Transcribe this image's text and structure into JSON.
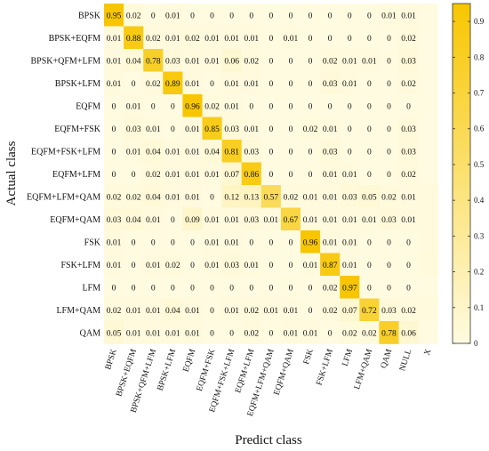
{
  "chart_data": {
    "type": "heatmap",
    "title": "",
    "xlabel": "Predict class",
    "ylabel": "Actual class",
    "rows": [
      "BPSK",
      "BPSK+EQFM",
      "BPSK+QFM+LFM",
      "BPSK+LFM",
      "EQFM",
      "EQFM+FSK",
      "EQFM+FSK+LFM",
      "EQFM+LFM",
      "EQFM+LFM+QAM",
      "EQFM+QAM",
      "FSK",
      "FSK+LFM",
      "LFM",
      "LFM+QAM",
      "QAM"
    ],
    "columns": [
      "BPSK",
      "BPSK+EQFM",
      "BPSK+QFM+LFM",
      "BPSK+LFM",
      "EQFM",
      "EQFM+FSK",
      "EQFM+FSK+LFM",
      "EQFM+LFM",
      "EQFM+LFM+QAM",
      "EQFM+QAM",
      "FSK",
      "FSK+LFM",
      "LFM",
      "LFM+QAM",
      "QAM",
      "NULL",
      "X"
    ],
    "values": [
      [
        0.95,
        0.02,
        0,
        0.01,
        0,
        0,
        0,
        0,
        0,
        0,
        0,
        0,
        0,
        0,
        0.01,
        0.01,
        0
      ],
      [
        0.01,
        0.88,
        0.02,
        0.01,
        0.02,
        0.01,
        0.01,
        0.01,
        0,
        0.01,
        0,
        0,
        0,
        0,
        0,
        0.02,
        0
      ],
      [
        0.01,
        0.04,
        0.78,
        0.03,
        0.01,
        0.01,
        0.06,
        0.02,
        0,
        0,
        0,
        0.02,
        0.01,
        0.01,
        0,
        0.03,
        0
      ],
      [
        0.01,
        0,
        0.02,
        0.89,
        0.01,
        0,
        0.01,
        0.01,
        0,
        0,
        0,
        0.03,
        0.01,
        0,
        0,
        0.02,
        0
      ],
      [
        0,
        0.01,
        0,
        0,
        0.96,
        0.02,
        0.01,
        0,
        0,
        0,
        0,
        0,
        0,
        0,
        0,
        0,
        0
      ],
      [
        0,
        0.03,
        0.01,
        0,
        0.01,
        0.85,
        0.03,
        0.01,
        0,
        0,
        0.02,
        0.01,
        0,
        0,
        0,
        0.03,
        0
      ],
      [
        0,
        0.01,
        0.04,
        0.01,
        0.01,
        0.04,
        0.81,
        0.03,
        0,
        0,
        0,
        0.03,
        0,
        0,
        0,
        0.03,
        0
      ],
      [
        0,
        0,
        0.02,
        0.01,
        0.01,
        0.01,
        0.07,
        0.86,
        0,
        0,
        0,
        0.01,
        0.01,
        0,
        0,
        0.02,
        0
      ],
      [
        0.02,
        0.02,
        0.04,
        0.01,
        0.01,
        0,
        0.12,
        0.13,
        0.57,
        0.02,
        0.01,
        0.01,
        0.03,
        0.05,
        0.02,
        0.01,
        0.01
      ],
      [
        0.03,
        0.04,
        0.01,
        0,
        0.09,
        0.01,
        0.01,
        0.03,
        0.01,
        0.67,
        0.01,
        0.01,
        0.01,
        0.01,
        0.03,
        0.01,
        0.01
      ],
      [
        0.01,
        0,
        0,
        0,
        0,
        0.01,
        0.01,
        0,
        0,
        0,
        0.96,
        0.01,
        0.01,
        0,
        0,
        0,
        0.01
      ],
      [
        0.01,
        0,
        0.01,
        0.02,
        0,
        0.01,
        0.03,
        0.01,
        0,
        0,
        0.01,
        0.87,
        0.01,
        0,
        0,
        0,
        0.02
      ],
      [
        0,
        0,
        0,
        0,
        0,
        0,
        0,
        0,
        0,
        0,
        0,
        0.02,
        0.97,
        0,
        0,
        0,
        0
      ],
      [
        0.02,
        0.01,
        0.01,
        0.04,
        0.01,
        0,
        0.01,
        0.02,
        0.01,
        0.01,
        0,
        0.02,
        0.07,
        0.72,
        0.03,
        0.02,
        0.01
      ],
      [
        0.05,
        0.01,
        0.01,
        0.01,
        0.01,
        0,
        0,
        0.02,
        0,
        0.01,
        0.01,
        0,
        0.02,
        0.02,
        0.78,
        0.06,
        0
      ]
    ],
    "colorbar": {
      "min": 0,
      "max": 0.95,
      "ticks": [
        0,
        0.1,
        0.2,
        0.3,
        0.4,
        0.5,
        0.6,
        0.7,
        0.8,
        0.9
      ],
      "low_color": "#fffbe0",
      "high_color": "#f7c600"
    },
    "legend": "right"
  }
}
